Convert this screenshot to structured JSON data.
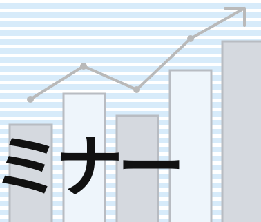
{
  "headline": {
    "text": "ミナー"
  },
  "graphic": {
    "bar_count": 5,
    "line_point_count": 5,
    "arrow_icon": "trend-up-arrow-icon"
  },
  "colors": {
    "background_stripe": "#d7ebfa",
    "bar_fill_grey": "#d5d9df",
    "bar_fill_light": "#eef5fb",
    "bar_outline": "#b8bcc2",
    "line_grey": "#b9b9b9",
    "headline": "#111111"
  }
}
